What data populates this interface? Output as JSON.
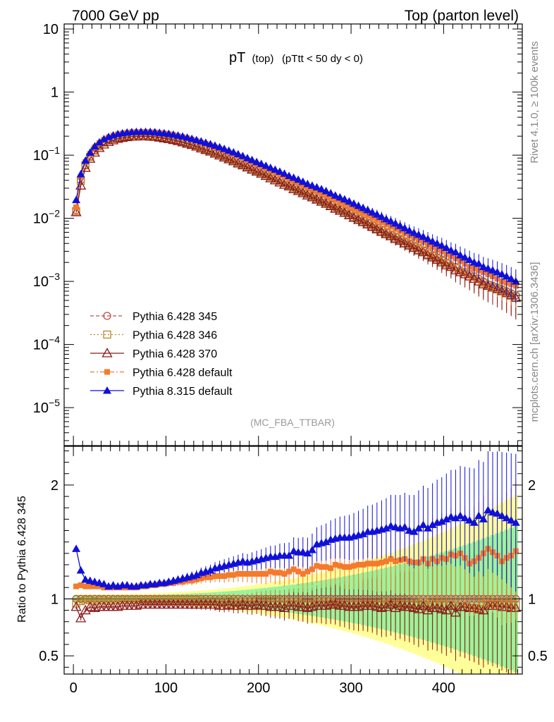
{
  "header": {
    "left": "7000 GeV pp",
    "right": "Top (parton level)"
  },
  "side": {
    "rivet": "Rivet 4.1.0, ≥ 100k events",
    "mcplots": "mcplots.cern.ch [arXiv:1306.3436]"
  },
  "chart_data": [
    {
      "type": "line",
      "title_main": "pT",
      "title_sub1": "(top)",
      "title_sub2": "(pTtt < 50 dy < 0)",
      "watermark": "(MC_FBA_TTBAR)",
      "yscale": "log",
      "ylim": [
        2.5e-06,
        12
      ],
      "xlim": [
        -10,
        485
      ],
      "y_tick_labels": [
        {
          "base": "10",
          "exp": "",
          "value": 10
        },
        {
          "base": "1",
          "exp": "",
          "value": 1
        },
        {
          "base": "10",
          "exp": "−1",
          "value": 0.1
        },
        {
          "base": "10",
          "exp": "−2",
          "value": 0.01
        },
        {
          "base": "10",
          "exp": "−3",
          "value": 0.001
        },
        {
          "base": "10",
          "exp": "−4",
          "value": 0.0001
        },
        {
          "base": "10",
          "exp": "−5",
          "value": 1e-05
        }
      ],
      "x": [
        3,
        8,
        13,
        18,
        23,
        28,
        33,
        38,
        43,
        48,
        53,
        58,
        63,
        68,
        73,
        78,
        83,
        88,
        93,
        98,
        103,
        108,
        113,
        118,
        123,
        128,
        133,
        138,
        143,
        148,
        153,
        158,
        163,
        168,
        173,
        178,
        183,
        188,
        193,
        198,
        203,
        208,
        213,
        218,
        223,
        228,
        233,
        238,
        243,
        248,
        253,
        258,
        263,
        268,
        273,
        278,
        283,
        288,
        293,
        298,
        303,
        308,
        313,
        318,
        323,
        328,
        333,
        338,
        343,
        348,
        353,
        358,
        363,
        368,
        373,
        378,
        383,
        388,
        393,
        398,
        403,
        408,
        413,
        418,
        423,
        428,
        433,
        438,
        443,
        448,
        453,
        458,
        463,
        468,
        473,
        478
      ],
      "series": [
        {
          "name": "Pythia 6.428 345",
          "color": "#b65050",
          "marker": "circle-open",
          "dash": "5,3",
          "values": [
            0.0135,
            0.04,
            0.07,
            0.095,
            0.12,
            0.14,
            0.16,
            0.175,
            0.185,
            0.195,
            0.2,
            0.205,
            0.21,
            0.21,
            0.21,
            0.21,
            0.208,
            0.205,
            0.2,
            0.195,
            0.19,
            0.183,
            0.175,
            0.168,
            0.16,
            0.152,
            0.144,
            0.135,
            0.127,
            0.12,
            0.112,
            0.105,
            0.098,
            0.091,
            0.085,
            0.079,
            0.073,
            0.068,
            0.063,
            0.058,
            0.054,
            0.05,
            0.046,
            0.043,
            0.04,
            0.037,
            0.034,
            0.031,
            0.029,
            0.027,
            0.025,
            0.023,
            0.021,
            0.0195,
            0.018,
            0.0165,
            0.015,
            0.014,
            0.013,
            0.012,
            0.011,
            0.0101,
            0.0093,
            0.0085,
            0.0078,
            0.0072,
            0.0066,
            0.006,
            0.0055,
            0.0051,
            0.0047,
            0.0043,
            0.004,
            0.0037,
            0.0034,
            0.0031,
            0.0029,
            0.0026,
            0.0024,
            0.0022,
            0.002,
            0.0018,
            0.0017,
            0.0015,
            0.0014,
            0.0013,
            0.0012,
            0.0011,
            0.001,
            0.0009,
            0.00085,
            0.0008,
            0.00075,
            0.0007,
            0.00065,
            0.0006
          ]
        },
        {
          "name": "Pythia 6.428 346",
          "color": "#b8862b",
          "marker": "square-open",
          "dash": "2,3",
          "values": [
            0.013,
            0.039,
            0.069,
            0.094,
            0.118,
            0.138,
            0.158,
            0.172,
            0.183,
            0.193,
            0.198,
            0.203,
            0.208,
            0.208,
            0.208,
            0.208,
            0.206,
            0.203,
            0.198,
            0.193,
            0.188,
            0.181,
            0.173,
            0.166,
            0.158,
            0.15,
            0.142,
            0.133,
            0.125,
            0.118,
            0.11,
            0.103,
            0.096,
            0.089,
            0.083,
            0.077,
            0.071,
            0.066,
            0.061,
            0.057,
            0.053,
            0.049,
            0.045,
            0.042,
            0.039,
            0.036,
            0.033,
            0.03,
            0.028,
            0.026,
            0.024,
            0.022,
            0.0205,
            0.019,
            0.0175,
            0.016,
            0.0145,
            0.0135,
            0.0125,
            0.0115,
            0.0105,
            0.0097,
            0.0089,
            0.0082,
            0.0075,
            0.0069,
            0.0063,
            0.0058,
            0.0053,
            0.0049,
            0.0045,
            0.0041,
            0.0038,
            0.0035,
            0.0032,
            0.003,
            0.0027,
            0.0025,
            0.0023,
            0.0021,
            0.0019,
            0.0017,
            0.0016,
            0.0014,
            0.0013,
            0.0012,
            0.0011,
            0.001,
            0.00095,
            0.00088,
            0.00082,
            0.00077,
            0.00072,
            0.00067,
            0.00062,
            0.00057
          ]
        },
        {
          "name": "Pythia 6.428 370",
          "color": "#8b1a1a",
          "marker": "triangle-open",
          "dash": "",
          "values": [
            0.0125,
            0.033,
            0.063,
            0.088,
            0.11,
            0.13,
            0.148,
            0.162,
            0.172,
            0.182,
            0.188,
            0.193,
            0.198,
            0.198,
            0.199,
            0.199,
            0.197,
            0.195,
            0.19,
            0.185,
            0.18,
            0.174,
            0.167,
            0.16,
            0.152,
            0.145,
            0.137,
            0.128,
            0.121,
            0.114,
            0.106,
            0.099,
            0.092,
            0.086,
            0.08,
            0.074,
            0.069,
            0.064,
            0.059,
            0.055,
            0.051,
            0.047,
            0.043,
            0.04,
            0.037,
            0.034,
            0.032,
            0.029,
            0.027,
            0.025,
            0.023,
            0.0215,
            0.0198,
            0.0183,
            0.017,
            0.0156,
            0.0142,
            0.0132,
            0.0122,
            0.0112,
            0.0102,
            0.0094,
            0.0087,
            0.008,
            0.0073,
            0.0067,
            0.0061,
            0.0056,
            0.0052,
            0.0047,
            0.0044,
            0.004,
            0.0037,
            0.0034,
            0.0031,
            0.0029,
            0.0026,
            0.0024,
            0.0022,
            0.002,
            0.0018,
            0.0017,
            0.0015,
            0.0014,
            0.0013,
            0.0012,
            0.0011,
            0.001,
            0.0009,
            0.00085,
            0.0008,
            0.00075,
            0.0007,
            0.00065,
            0.0006,
            0.00055
          ]
        },
        {
          "name": "Pythia 6.428 default",
          "color": "#f47a2c",
          "marker": "square-filled",
          "dash": "6,3,2,3",
          "values": [
            0.015,
            0.045,
            0.078,
            0.105,
            0.133,
            0.155,
            0.176,
            0.192,
            0.204,
            0.214,
            0.22,
            0.226,
            0.231,
            0.232,
            0.233,
            0.233,
            0.232,
            0.23,
            0.225,
            0.221,
            0.216,
            0.209,
            0.201,
            0.194,
            0.186,
            0.177,
            0.168,
            0.159,
            0.151,
            0.143,
            0.134,
            0.126,
            0.118,
            0.11,
            0.103,
            0.096,
            0.089,
            0.083,
            0.077,
            0.071,
            0.066,
            0.061,
            0.057,
            0.053,
            0.049,
            0.045,
            0.042,
            0.039,
            0.036,
            0.033,
            0.031,
            0.029,
            0.027,
            0.025,
            0.023,
            0.021,
            0.0195,
            0.018,
            0.0167,
            0.0154,
            0.0142,
            0.0131,
            0.0121,
            0.0111,
            0.0102,
            0.0094,
            0.0087,
            0.008,
            0.0074,
            0.0068,
            0.0063,
            0.0058,
            0.0053,
            0.0049,
            0.0045,
            0.0042,
            0.0038,
            0.0035,
            0.0032,
            0.003,
            0.0027,
            0.0025,
            0.0023,
            0.0021,
            0.0019,
            0.0017,
            0.0016,
            0.0015,
            0.0014,
            0.0013,
            0.0012,
            0.0011,
            0.001,
            0.00095,
            0.0009,
            0.00085
          ]
        },
        {
          "name": "Pythia 8.315 default",
          "color": "#1010d8",
          "marker": "triangle-filled",
          "dash": "",
          "values": [
            0.0195,
            0.05,
            0.082,
            0.11,
            0.138,
            0.16,
            0.18,
            0.195,
            0.207,
            0.217,
            0.223,
            0.229,
            0.233,
            0.234,
            0.235,
            0.235,
            0.234,
            0.232,
            0.227,
            0.223,
            0.218,
            0.212,
            0.205,
            0.198,
            0.19,
            0.182,
            0.174,
            0.166,
            0.158,
            0.15,
            0.142,
            0.134,
            0.126,
            0.118,
            0.111,
            0.104,
            0.097,
            0.09,
            0.084,
            0.078,
            0.073,
            0.068,
            0.063,
            0.059,
            0.055,
            0.051,
            0.047,
            0.044,
            0.041,
            0.038,
            0.035,
            0.033,
            0.031,
            0.029,
            0.027,
            0.025,
            0.023,
            0.0215,
            0.02,
            0.0185,
            0.0171,
            0.0158,
            0.0146,
            0.0135,
            0.0124,
            0.0115,
            0.0106,
            0.0097,
            0.009,
            0.0083,
            0.0076,
            0.007,
            0.0064,
            0.0059,
            0.0055,
            0.0051,
            0.0047,
            0.0043,
            0.004,
            0.0037,
            0.0034,
            0.0031,
            0.0029,
            0.0026,
            0.0024,
            0.0022,
            0.002,
            0.0019,
            0.0017,
            0.0016,
            0.0015,
            0.0014,
            0.0013,
            0.0012,
            0.0011,
            0.001
          ]
        }
      ]
    },
    {
      "type": "line",
      "ylabel": "Ratio to Pythia 6.428 345",
      "ylim": [
        0.34,
        2.34
      ],
      "xlim": [
        -10,
        485
      ],
      "x_ticks": [
        0,
        100,
        200,
        300,
        400
      ],
      "y_ticks": [
        0.5,
        1,
        2
      ],
      "reference_line": 1,
      "ratio_values": {
        "Pythia 6.428 346": [
          0.96,
          0.98,
          0.99,
          0.99,
          0.98,
          0.99,
          0.99,
          0.98,
          0.99,
          0.99,
          0.99,
          0.99,
          0.99,
          0.99,
          0.99,
          0.99,
          0.99,
          0.99,
          0.99,
          0.99,
          0.99,
          0.99,
          0.99,
          0.99,
          0.99,
          0.99,
          0.99,
          0.98,
          0.98,
          0.98,
          0.98,
          0.98,
          0.98,
          0.98,
          0.98,
          0.97,
          0.97,
          0.97,
          0.97,
          0.98,
          0.98,
          0.98,
          0.98,
          0.98,
          0.97,
          0.97,
          0.97,
          0.97,
          0.97,
          0.96,
          0.96,
          0.96,
          0.97,
          0.97,
          0.97,
          0.97,
          0.96,
          0.96,
          0.96,
          0.96,
          0.95,
          0.96,
          0.96,
          0.96,
          0.96,
          0.96,
          0.95,
          0.97,
          0.96,
          0.96,
          0.96,
          0.95,
          0.95,
          0.95,
          0.94,
          0.97,
          0.93,
          0.96,
          0.96,
          0.95,
          0.95,
          0.94,
          0.94,
          0.93,
          0.93,
          0.92,
          0.92,
          0.91,
          0.95,
          0.98,
          0.96,
          0.96,
          0.96,
          0.96,
          0.95,
          0.95
        ],
        "Pythia 6.428 370": [
          0.93,
          0.83,
          0.9,
          0.93,
          0.92,
          0.93,
          0.93,
          0.93,
          0.93,
          0.93,
          0.94,
          0.94,
          0.94,
          0.94,
          0.95,
          0.95,
          0.95,
          0.95,
          0.95,
          0.95,
          0.95,
          0.95,
          0.95,
          0.95,
          0.95,
          0.95,
          0.95,
          0.95,
          0.95,
          0.95,
          0.95,
          0.94,
          0.94,
          0.95,
          0.94,
          0.94,
          0.95,
          0.94,
          0.94,
          0.95,
          0.94,
          0.94,
          0.93,
          0.93,
          0.93,
          0.92,
          0.94,
          0.94,
          0.93,
          0.93,
          0.92,
          0.93,
          0.94,
          0.94,
          0.94,
          0.95,
          0.95,
          0.94,
          0.94,
          0.93,
          0.93,
          0.93,
          0.94,
          0.94,
          0.94,
          0.93,
          0.92,
          0.93,
          0.95,
          0.92,
          0.94,
          0.93,
          0.93,
          0.92,
          0.91,
          0.94,
          0.9,
          0.92,
          0.92,
          0.91,
          0.9,
          0.94,
          0.88,
          0.93,
          0.93,
          0.92,
          0.92,
          0.91,
          0.9,
          0.94,
          0.94,
          0.94,
          0.93,
          0.93,
          0.92,
          0.92
        ],
        "Pythia 6.428 default": [
          1.11,
          1.12,
          1.11,
          1.11,
          1.11,
          1.11,
          1.1,
          1.1,
          1.1,
          1.1,
          1.1,
          1.1,
          1.1,
          1.1,
          1.11,
          1.11,
          1.12,
          1.12,
          1.13,
          1.13,
          1.14,
          1.14,
          1.15,
          1.15,
          1.16,
          1.16,
          1.17,
          1.18,
          1.19,
          1.19,
          1.2,
          1.2,
          1.2,
          1.21,
          1.21,
          1.22,
          1.22,
          1.22,
          1.22,
          1.22,
          1.22,
          1.22,
          1.24,
          1.23,
          1.23,
          1.22,
          1.24,
          1.26,
          1.24,
          1.22,
          1.24,
          1.26,
          1.29,
          1.28,
          1.28,
          1.27,
          1.3,
          1.29,
          1.28,
          1.28,
          1.29,
          1.3,
          1.3,
          1.31,
          1.31,
          1.31,
          1.32,
          1.33,
          1.35,
          1.33,
          1.34,
          1.35,
          1.33,
          1.32,
          1.32,
          1.35,
          1.31,
          1.35,
          1.33,
          1.36,
          1.35,
          1.39,
          1.38,
          1.4,
          1.36,
          1.31,
          1.33,
          1.36,
          1.4,
          1.44,
          1.41,
          1.38,
          1.33,
          1.36,
          1.38,
          1.42
        ],
        "Pythia 8.315 default": [
          1.44,
          1.25,
          1.17,
          1.16,
          1.15,
          1.14,
          1.13,
          1.11,
          1.12,
          1.11,
          1.12,
          1.12,
          1.11,
          1.11,
          1.12,
          1.12,
          1.13,
          1.13,
          1.14,
          1.14,
          1.15,
          1.16,
          1.17,
          1.18,
          1.19,
          1.2,
          1.21,
          1.23,
          1.24,
          1.25,
          1.27,
          1.28,
          1.29,
          1.3,
          1.31,
          1.32,
          1.33,
          1.32,
          1.33,
          1.34,
          1.35,
          1.36,
          1.37,
          1.37,
          1.38,
          1.38,
          1.38,
          1.42,
          1.41,
          1.41,
          1.4,
          1.43,
          1.48,
          1.49,
          1.5,
          1.52,
          1.53,
          1.54,
          1.54,
          1.54,
          1.55,
          1.56,
          1.57,
          1.59,
          1.59,
          1.6,
          1.61,
          1.62,
          1.64,
          1.63,
          1.62,
          1.63,
          1.6,
          1.59,
          1.62,
          1.65,
          1.62,
          1.65,
          1.67,
          1.68,
          1.7,
          1.72,
          1.71,
          1.73,
          1.71,
          1.69,
          1.67,
          1.73,
          1.7,
          1.78,
          1.76,
          1.75,
          1.73,
          1.71,
          1.69,
          1.67
        ]
      }
    }
  ]
}
